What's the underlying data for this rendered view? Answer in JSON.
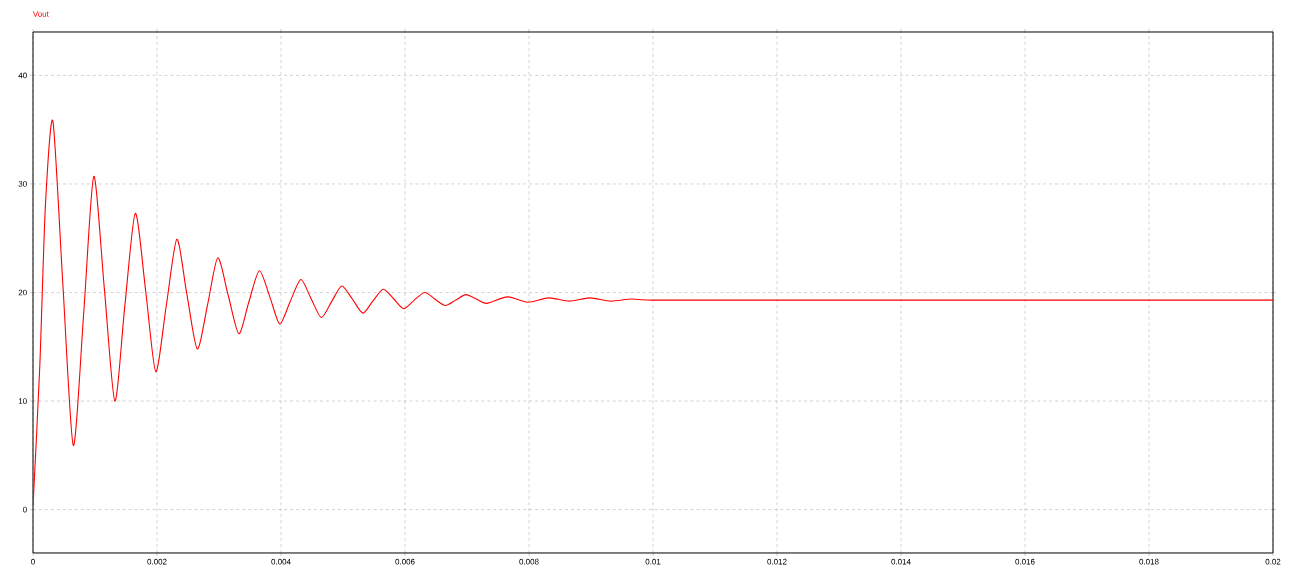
{
  "chart_data": {
    "type": "line",
    "grid": true,
    "line_style": "solid",
    "xlim": [
      0,
      0.02
    ],
    "ylim": [
      -4,
      44
    ],
    "xticks": [
      0,
      0.002,
      0.004,
      0.006,
      0.008,
      0.01,
      0.012,
      0.014,
      0.016,
      0.018,
      0.02
    ],
    "yticks": [
      0,
      10,
      20,
      30,
      40
    ],
    "x": [
      0,
      0.00011,
      0.0002,
      0.00032,
      0.00048,
      0.00065,
      0.00082,
      0.00098,
      0.00115,
      0.00132,
      0.00148,
      0.00165,
      0.00182,
      0.00198,
      0.00215,
      0.00232,
      0.00248,
      0.00265,
      0.00282,
      0.00298,
      0.00315,
      0.00332,
      0.00348,
      0.00365,
      0.00382,
      0.00398,
      0.00415,
      0.00432,
      0.00448,
      0.00465,
      0.00482,
      0.00498,
      0.00515,
      0.00532,
      0.00548,
      0.00565,
      0.00582,
      0.00598,
      0.00615,
      0.00632,
      0.00648,
      0.00665,
      0.00682,
      0.00698,
      0.00715,
      0.00732,
      0.00765,
      0.00798,
      0.00832,
      0.00865,
      0.00898,
      0.00932,
      0.00965,
      0.00998,
      0.012,
      0.02
    ],
    "series": [
      {
        "name": "Vout",
        "color": "#ff0000",
        "values": [
          0.3,
          13.3,
          28,
          35.8,
          20.9,
          5.9,
          18.3,
          30.7,
          20.4,
          10.0,
          18.7,
          27.3,
          20.0,
          12.7,
          18.8,
          24.9,
          19.9,
          14.8,
          19.0,
          23.2,
          19.7,
          16.2,
          19.1,
          22.0,
          19.6,
          17.1,
          19.2,
          21.2,
          19.5,
          17.7,
          19.2,
          20.6,
          19.4,
          18.1,
          19.2,
          20.3,
          19.4,
          18.5,
          19.3,
          20.0,
          19.4,
          18.8,
          19.3,
          19.8,
          19.4,
          19.0,
          19.6,
          19.1,
          19.5,
          19.2,
          19.5,
          19.2,
          19.4,
          19.3,
          19.3,
          19.3
        ]
      }
    ]
  }
}
